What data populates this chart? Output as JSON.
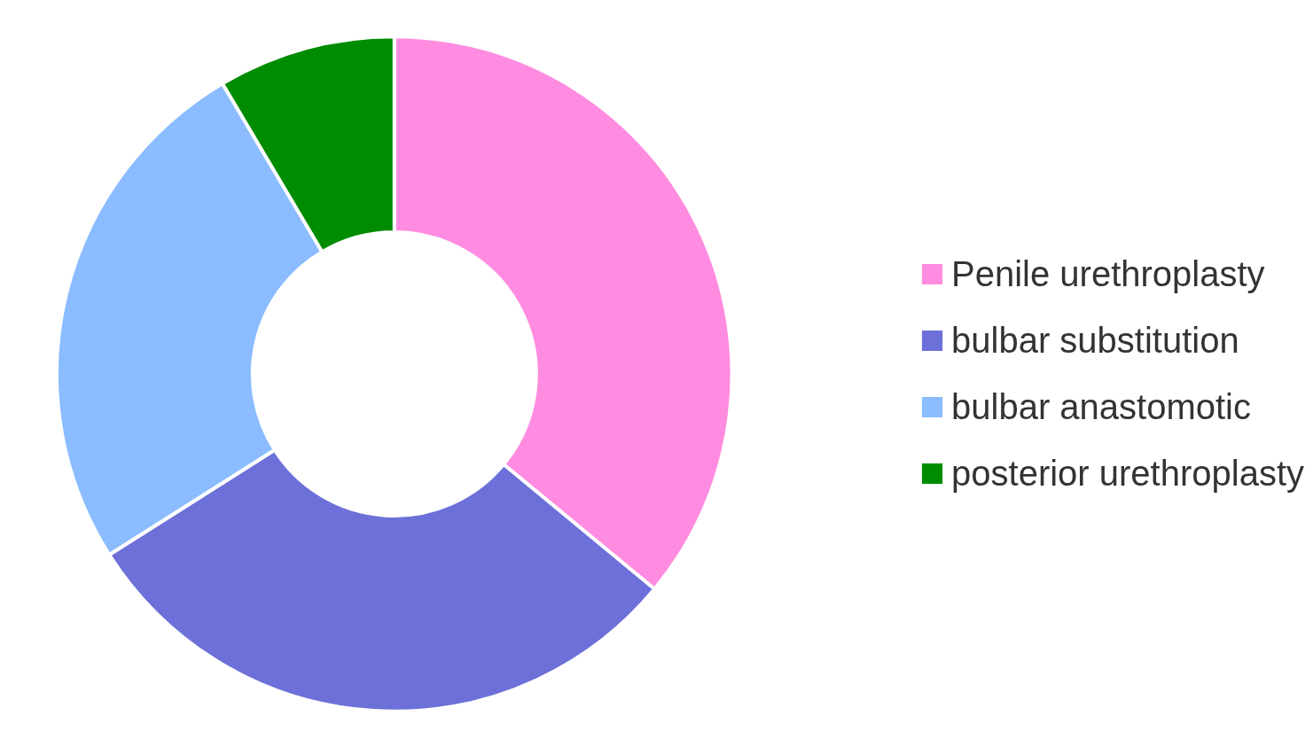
{
  "chart_data": {
    "type": "donut",
    "categories": [
      "Penile urethroplasty",
      "bulbar substitution",
      "bulbar anastomotic",
      "posterior urethroplasty"
    ],
    "values": [
      36,
      30,
      25.5,
      8.5
    ],
    "colors": [
      "#ff8ce0",
      "#6c70d8",
      "#8abcff",
      "#008c00"
    ],
    "legend": "right"
  }
}
